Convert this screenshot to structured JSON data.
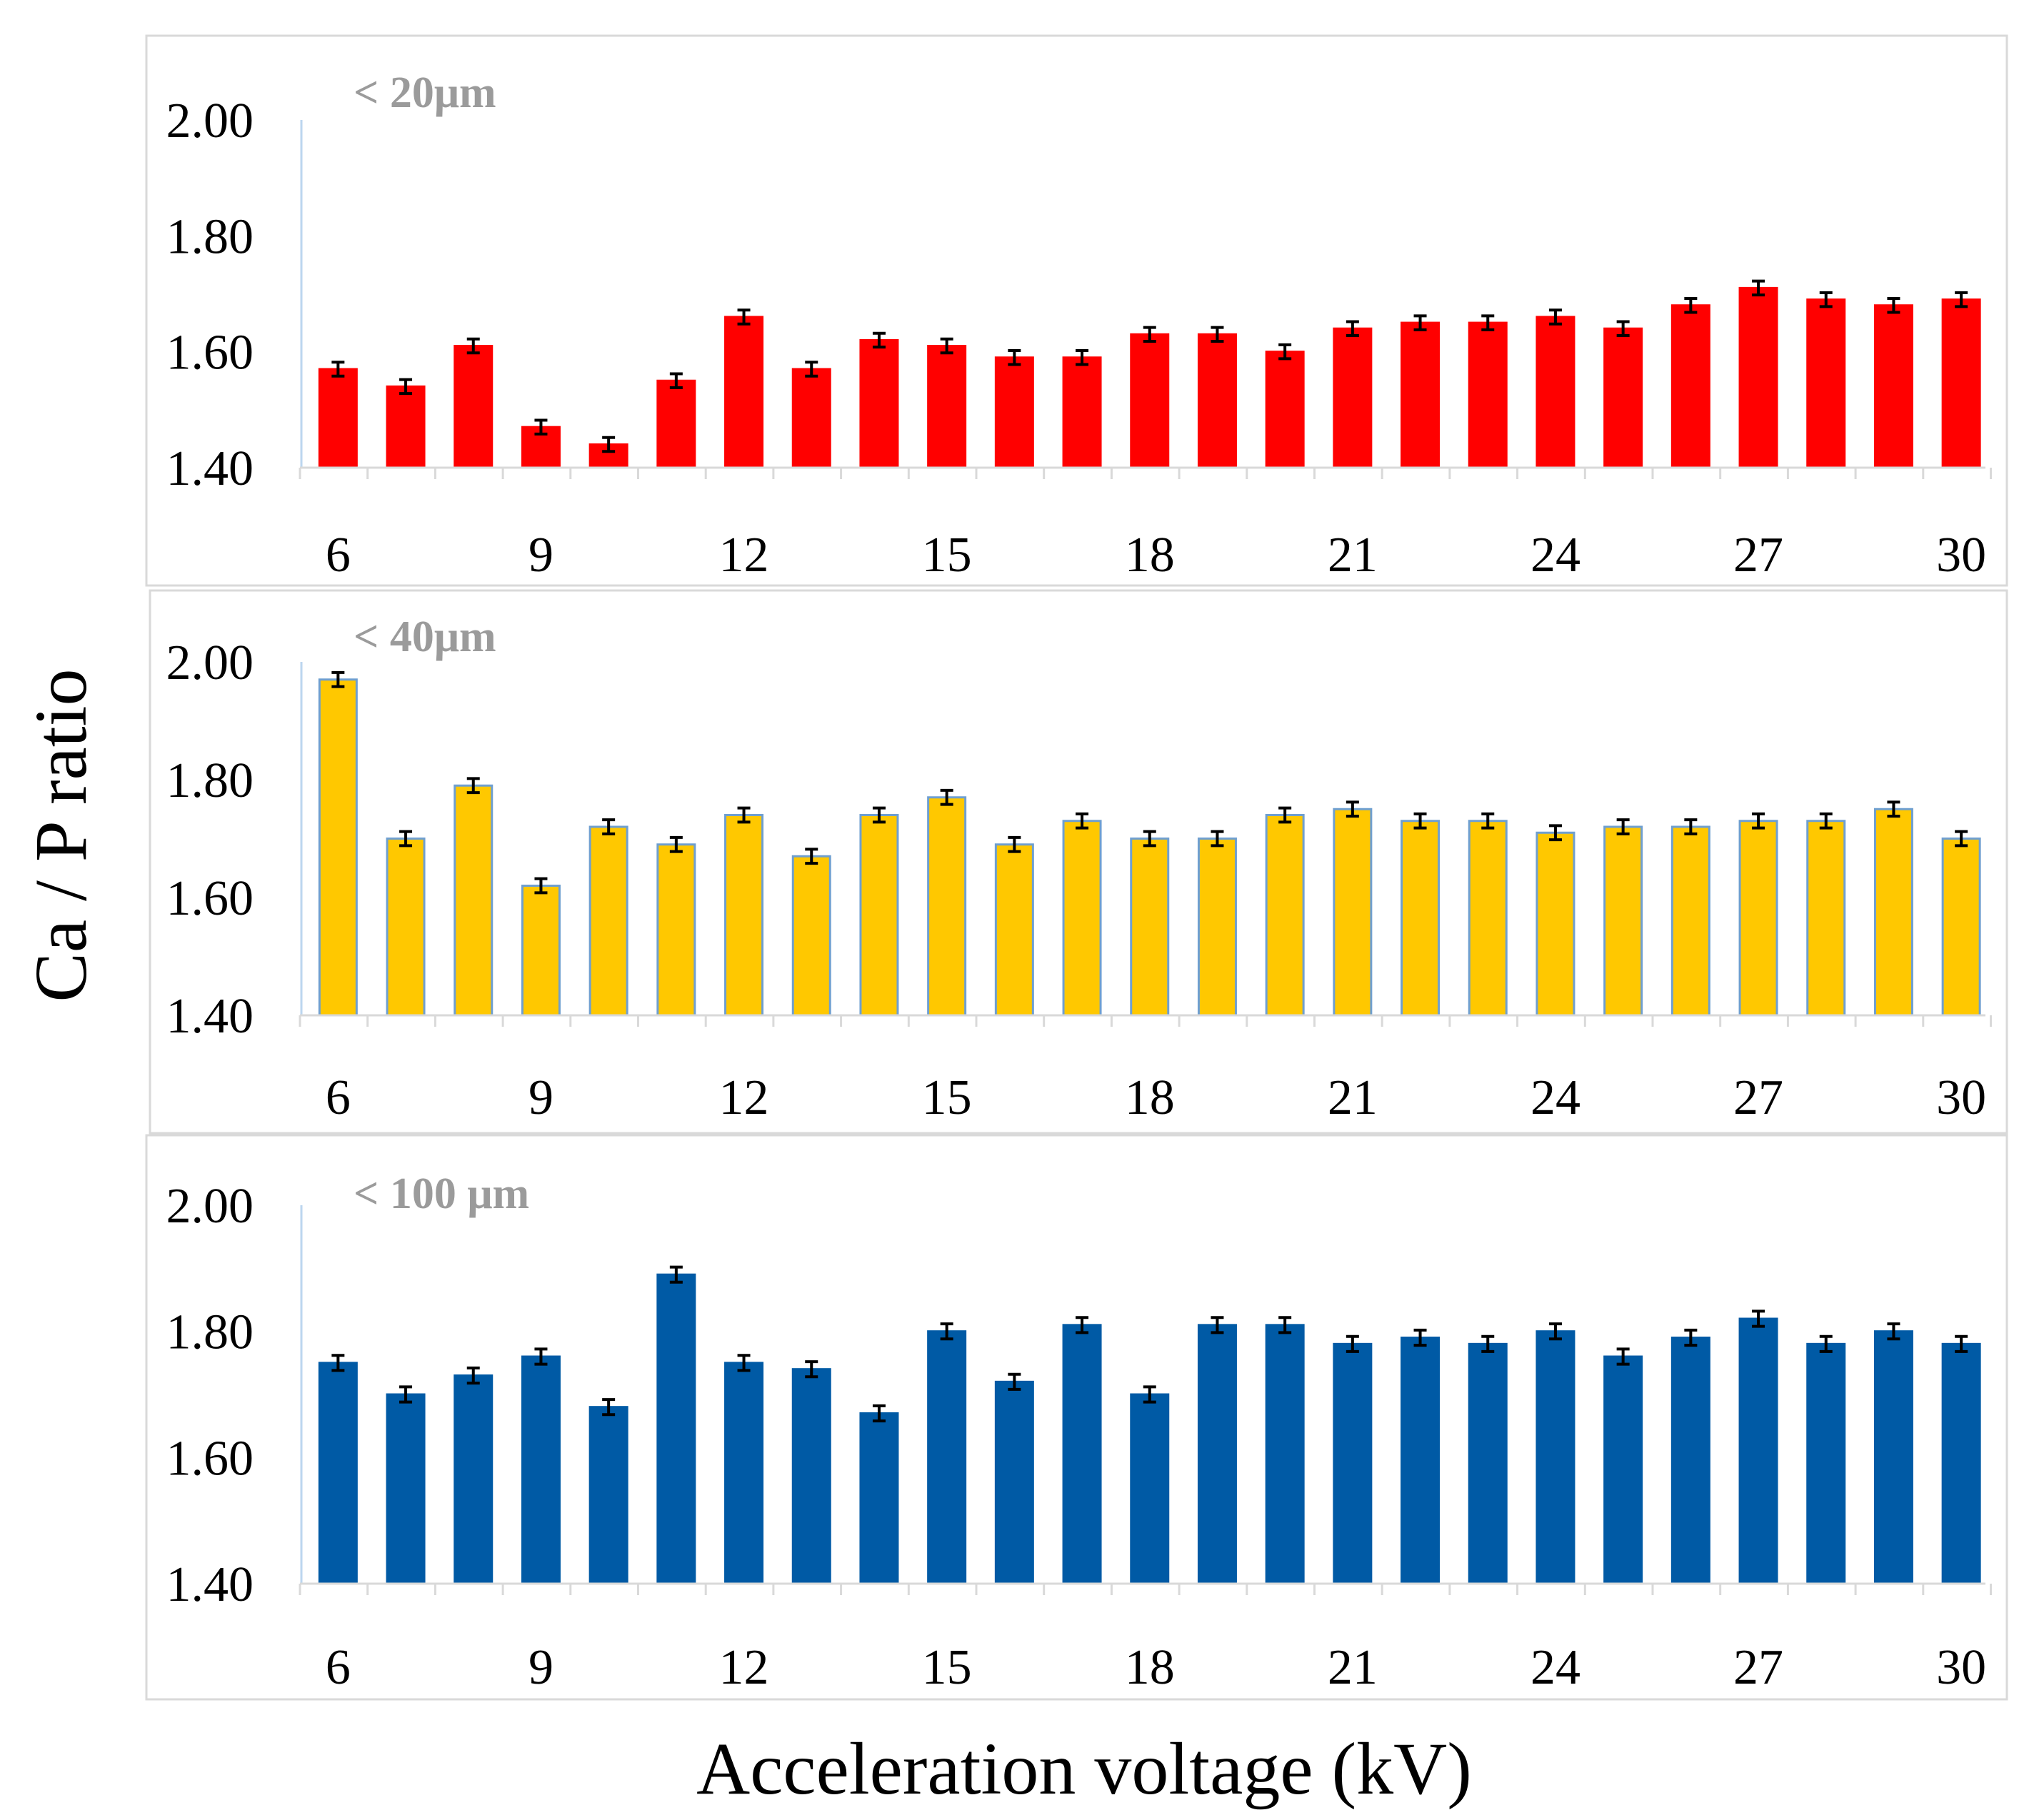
{
  "chart_data": [
    {
      "type": "bar",
      "panel_label": "< 20μm",
      "color": "#ff0000",
      "edge_color": "#ff0000",
      "x": [
        6,
        7,
        8,
        9,
        10,
        11,
        12,
        13,
        14,
        15,
        16,
        17,
        18,
        19,
        20,
        21,
        22,
        23,
        24,
        25,
        26,
        27,
        28,
        29,
        30
      ],
      "values": [
        1.57,
        1.54,
        1.61,
        1.47,
        1.44,
        1.55,
        1.66,
        1.57,
        1.62,
        1.61,
        1.59,
        1.59,
        1.63,
        1.63,
        1.6,
        1.64,
        1.65,
        1.65,
        1.66,
        1.64,
        1.68,
        1.71,
        1.69,
        1.68,
        1.69
      ],
      "errors": [
        0.012,
        0.012,
        0.012,
        0.012,
        0.012,
        0.012,
        0.012,
        0.012,
        0.012,
        0.012,
        0.012,
        0.012,
        0.012,
        0.012,
        0.012,
        0.012,
        0.012,
        0.012,
        0.012,
        0.012,
        0.012,
        0.012,
        0.012,
        0.012,
        0.012
      ],
      "ylim": [
        1.4,
        2.0
      ],
      "yticks": [
        "1.40",
        "1.60",
        "1.80",
        "2.00"
      ],
      "xticks": [
        "6",
        "9",
        "12",
        "15",
        "18",
        "21",
        "24",
        "27",
        "30"
      ]
    },
    {
      "type": "bar",
      "panel_label": "< 40μm",
      "color": "#ffc800",
      "edge_color": "#6f9fd0",
      "x": [
        6,
        7,
        8,
        9,
        10,
        11,
        12,
        13,
        14,
        15,
        16,
        17,
        18,
        19,
        20,
        21,
        22,
        23,
        24,
        25,
        26,
        27,
        28,
        29,
        30
      ],
      "values": [
        1.97,
        1.7,
        1.79,
        1.62,
        1.72,
        1.69,
        1.74,
        1.67,
        1.74,
        1.77,
        1.69,
        1.73,
        1.7,
        1.7,
        1.74,
        1.75,
        1.73,
        1.73,
        1.71,
        1.72,
        1.72,
        1.73,
        1.73,
        1.75,
        1.7
      ],
      "errors": [
        0.012,
        0.012,
        0.012,
        0.012,
        0.012,
        0.012,
        0.012,
        0.012,
        0.012,
        0.012,
        0.012,
        0.012,
        0.012,
        0.012,
        0.012,
        0.012,
        0.012,
        0.012,
        0.012,
        0.012,
        0.012,
        0.012,
        0.012,
        0.012,
        0.012
      ],
      "ylim": [
        1.4,
        2.0
      ],
      "yticks": [
        "1.40",
        "1.60",
        "1.80",
        "2.00"
      ],
      "xticks": [
        "6",
        "9",
        "12",
        "15",
        "18",
        "21",
        "24",
        "27",
        "30"
      ]
    },
    {
      "type": "bar",
      "panel_label": "< 100 μm",
      "color": "#005aa5",
      "edge_color": "#005aa5",
      "x": [
        6,
        7,
        8,
        9,
        10,
        11,
        12,
        13,
        14,
        15,
        16,
        17,
        18,
        19,
        20,
        21,
        22,
        23,
        24,
        25,
        26,
        27,
        28,
        29,
        30
      ],
      "values": [
        1.75,
        1.7,
        1.73,
        1.76,
        1.68,
        1.89,
        1.75,
        1.74,
        1.67,
        1.8,
        1.72,
        1.81,
        1.7,
        1.81,
        1.81,
        1.78,
        1.79,
        1.78,
        1.8,
        1.76,
        1.79,
        1.82,
        1.78,
        1.8,
        1.78
      ],
      "errors": [
        0.012,
        0.012,
        0.012,
        0.012,
        0.012,
        0.012,
        0.012,
        0.012,
        0.012,
        0.012,
        0.012,
        0.012,
        0.012,
        0.012,
        0.012,
        0.012,
        0.012,
        0.012,
        0.012,
        0.012,
        0.012,
        0.012,
        0.012,
        0.012,
        0.012
      ],
      "ylim": [
        1.4,
        2.0
      ],
      "yticks": [
        "1.40",
        "1.60",
        "1.80",
        "2.00"
      ],
      "xticks": [
        "6",
        "9",
        "12",
        "15",
        "18",
        "21",
        "24",
        "27",
        "30"
      ]
    }
  ],
  "ylabel": "Ca / P ratio",
  "xlabel": "Acceleration voltage (kV)"
}
